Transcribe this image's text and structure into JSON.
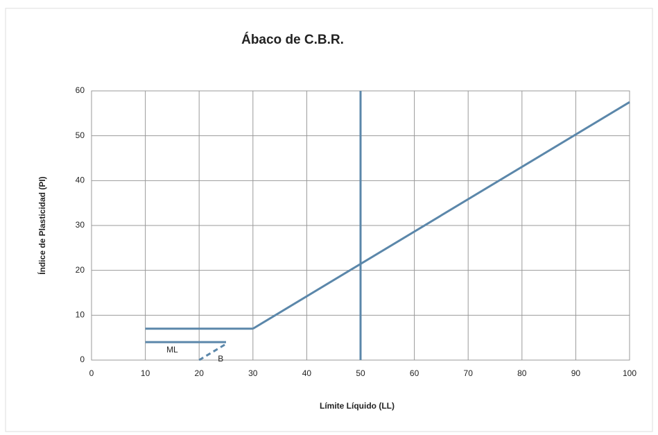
{
  "chart_data": {
    "type": "line",
    "title": "Ábaco de C.B.R.",
    "xlabel": "Límite Líquido (LL)",
    "ylabel": "Índice de Plasticidad (PI)",
    "xlim": [
      0,
      100
    ],
    "xticks": [
      0,
      10,
      20,
      30,
      40,
      50,
      60,
      70,
      80,
      90,
      100
    ],
    "ylim": [
      0,
      60
    ],
    "yticks": [
      0,
      10,
      20,
      30,
      40,
      50,
      60
    ],
    "grid": true,
    "series": [
      {
        "color": "#5b87aa",
        "x": [
          30,
          100
        ],
        "values": [
          7,
          57.5
        ]
      },
      {
        "color": "#5b87aa",
        "x": [
          10,
          30
        ],
        "values": [
          7,
          7
        ]
      },
      {
        "color": "#5b87aa",
        "x": [
          10,
          25
        ],
        "values": [
          4,
          4
        ]
      },
      {
        "color": "#5b87aa",
        "x": [
          20,
          25
        ],
        "values": [
          0,
          3.6
        ],
        "dashed": true
      },
      {
        "color": "#5b87aa",
        "x": [
          50,
          50
        ],
        "values": [
          0,
          60
        ]
      }
    ],
    "annotations": [
      {
        "text": "ML",
        "x": 15,
        "y": 2
      },
      {
        "text": "B",
        "x": 24,
        "y": 0
      }
    ]
  }
}
